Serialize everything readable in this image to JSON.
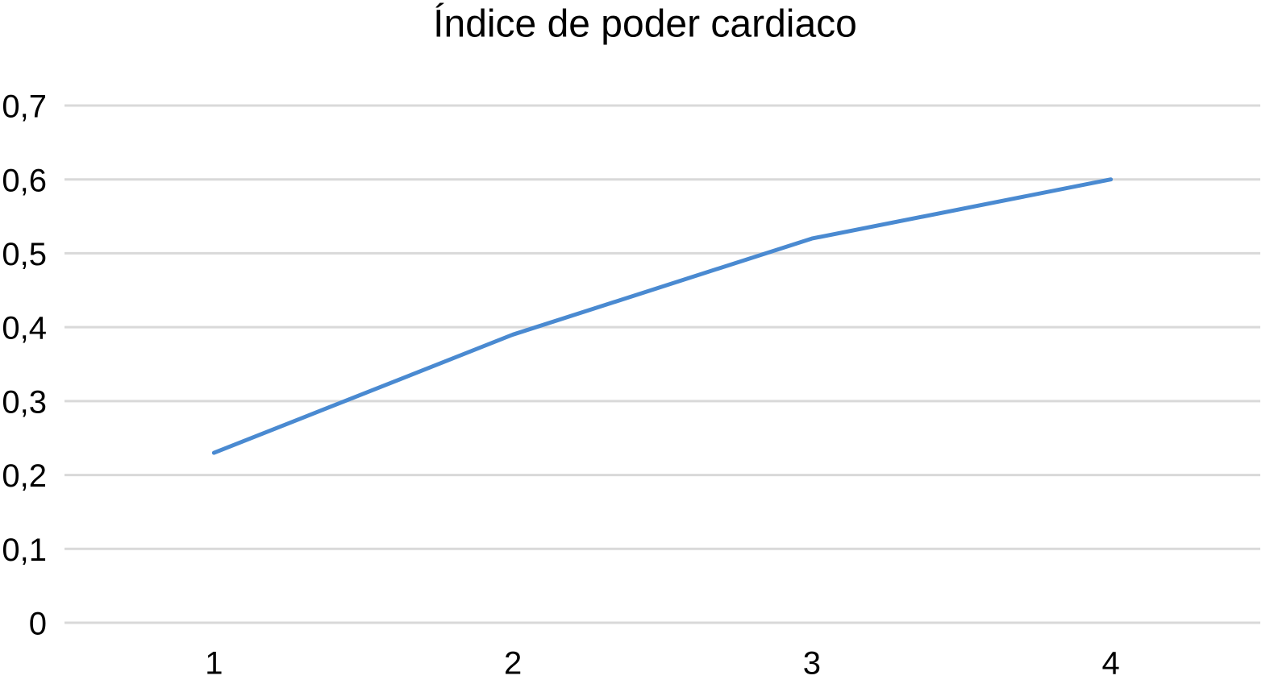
{
  "chart_data": {
    "type": "line",
    "title": "Índice de poder cardiaco",
    "categories": [
      "1",
      "2",
      "3",
      "4"
    ],
    "series": [
      {
        "name": "Índice de poder cardiaco",
        "color": "#4a8ad1",
        "values": [
          0.23,
          0.39,
          0.52,
          0.6
        ]
      }
    ],
    "ylim": [
      0,
      0.7
    ],
    "yticks": [
      0,
      {
        "value": 0.1,
        "label": "0,1"
      },
      {
        "value": 0.2,
        "label": "0,2"
      },
      {
        "value": 0.3,
        "label": "0,3"
      },
      {
        "value": 0.4,
        "label": "0,4"
      },
      {
        "value": 0.5,
        "label": "0,5"
      },
      {
        "value": 0.6,
        "label": "0,6"
      },
      {
        "value": 0.7,
        "label": "0,7"
      }
    ],
    "grid": true
  }
}
